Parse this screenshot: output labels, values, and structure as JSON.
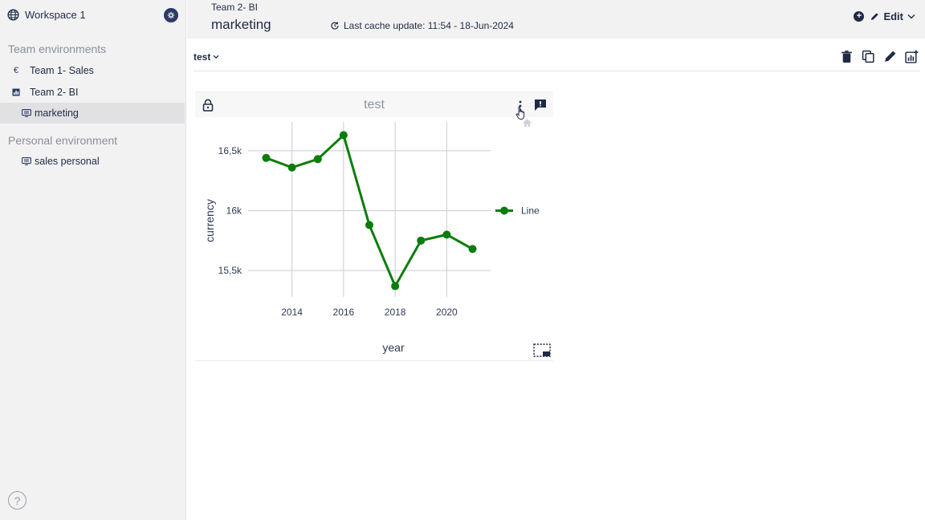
{
  "workspace": {
    "title": "Workspace 1",
    "badge_icon": "workspace-settings-icon"
  },
  "sidebar": {
    "team_section_title": "Team environments",
    "team_items": [
      {
        "label": "Team 1- Sales",
        "icon": "euro-icon"
      },
      {
        "label": "Team 2- BI",
        "icon": "chart-icon"
      }
    ],
    "active_sub_item": {
      "label": "marketing",
      "icon": "dashboard-icon"
    },
    "personal_section_title": "Personal environment",
    "personal_items": [
      {
        "label": "sales personal",
        "icon": "dashboard-icon"
      }
    ],
    "help_label": "?"
  },
  "header": {
    "breadcrumb": "Team 2- BI",
    "title": "marketing",
    "cache_text": "Last cache update: 11:54 - 18-Jun-2024",
    "edit_label": "Edit"
  },
  "toolbar": {
    "tab_label": "test"
  },
  "widget": {
    "title": "test"
  },
  "colors": {
    "accent": "#2b3a67",
    "line": "#0a7d0a",
    "sidebar_bg": "#f2f2f3"
  },
  "chart_data": {
    "type": "line",
    "title": "test",
    "xlabel": "year",
    "ylabel": "currency",
    "x": [
      2013,
      2014,
      2015,
      2016,
      2017,
      2018,
      2019,
      2020,
      2021
    ],
    "series": [
      {
        "name": "Line",
        "values": [
          16440,
          16360,
          16430,
          16630,
          15880,
          15370,
          15750,
          15800,
          15680
        ]
      }
    ],
    "x_ticks": [
      2014,
      2016,
      2018,
      2020
    ],
    "x_tick_labels": [
      "2014",
      "2016",
      "2018",
      "2020"
    ],
    "y_ticks": [
      15500,
      16000,
      16500
    ],
    "y_tick_labels": [
      "15,5k",
      "16k",
      "16,5k"
    ],
    "xlim": [
      2012.3,
      2021.7
    ],
    "ylim": [
      15280,
      16740
    ],
    "grid": true,
    "legend": "right"
  }
}
